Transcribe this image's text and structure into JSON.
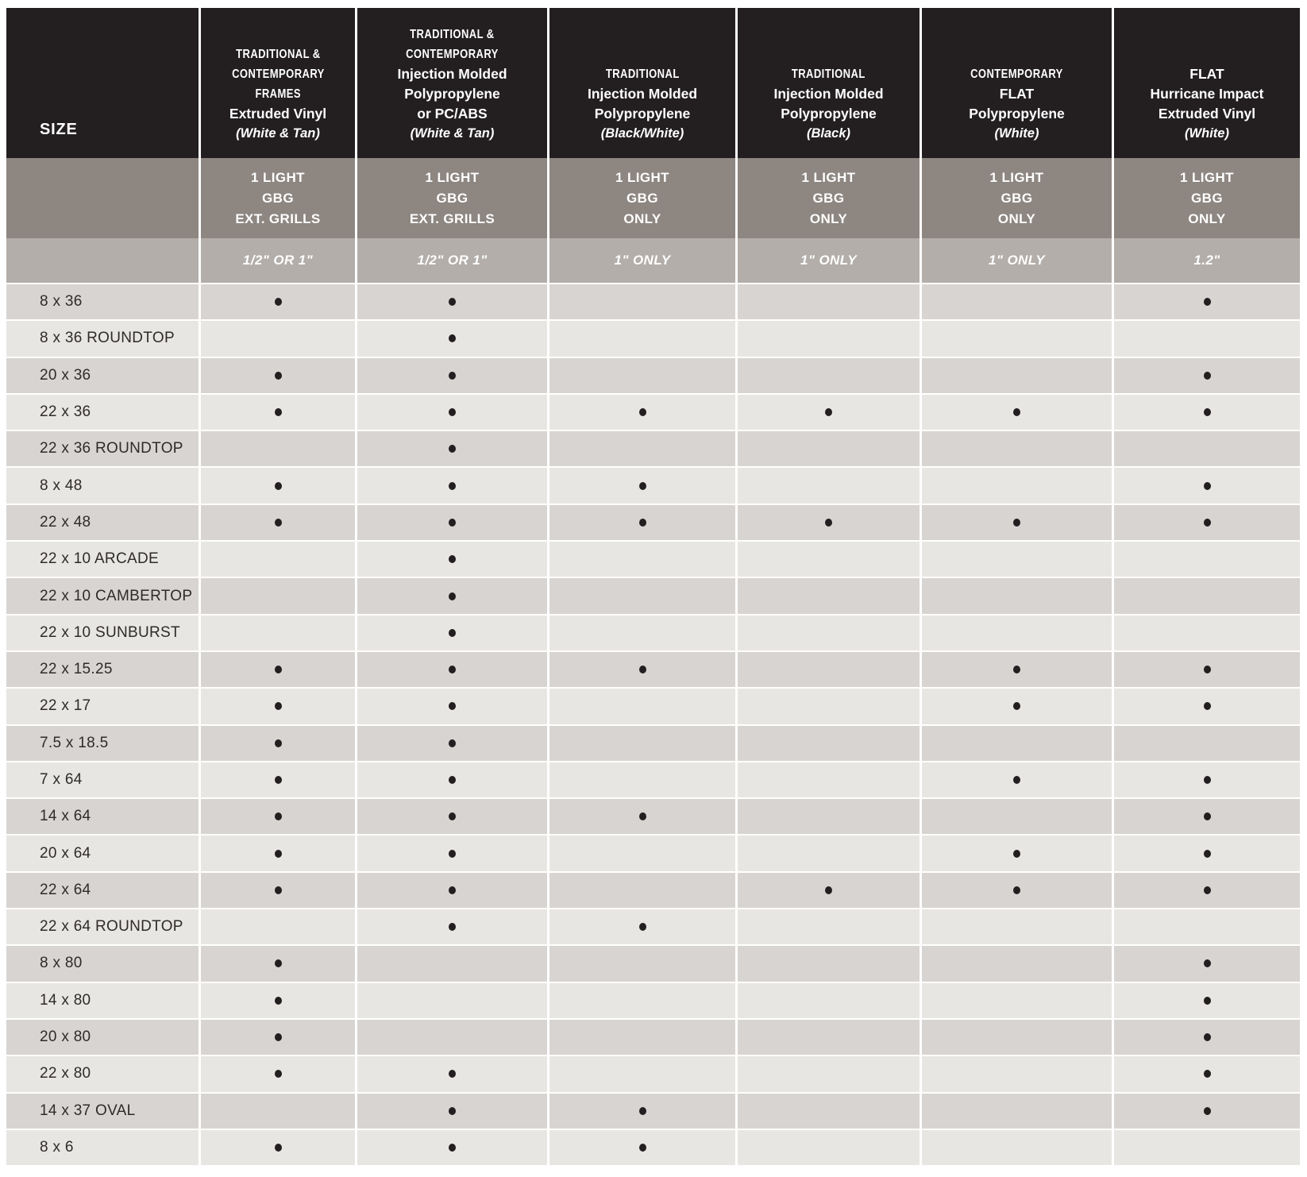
{
  "document_title": "Grille size availability chart",
  "colors": {
    "header_bg": "#231f20",
    "config_band_bg": "#8d8681",
    "size_band_bg": "#b3aeaa",
    "row_dark": "#d8d4d1",
    "row_light": "#e8e6e2",
    "header_text": "#ffffff",
    "row_text": "#2e2b2a",
    "dot": "#231f20"
  },
  "table": {
    "size_header": "SIZE",
    "columns": [
      {
        "family": [
          "TRADITIONAL &",
          "CONTEMPORARY",
          "FRAMES"
        ],
        "name": [
          "Extruded Vinyl"
        ],
        "finish": "(White & Tan)",
        "light_config": [
          "1 LIGHT",
          "GBG",
          "EXT. GRILLS"
        ],
        "bar_size": "1/2\" OR 1\""
      },
      {
        "family": [
          "TRADITIONAL &",
          "CONTEMPORARY"
        ],
        "name": [
          "Injection Molded",
          "Polypropylene",
          "or PC/ABS"
        ],
        "finish": "(White & Tan)",
        "light_config": [
          "1 LIGHT",
          "GBG",
          "EXT. GRILLS"
        ],
        "bar_size": "1/2\" OR 1\""
      },
      {
        "family": [
          "TRADITIONAL"
        ],
        "name": [
          "Injection Molded",
          "Polypropylene"
        ],
        "finish": "(Black/White)",
        "light_config": [
          "1 LIGHT",
          "GBG",
          "ONLY"
        ],
        "bar_size": "1\" ONLY"
      },
      {
        "family": [
          "TRADITIONAL"
        ],
        "name": [
          "Injection Molded",
          "Polypropylene"
        ],
        "finish": "(Black)",
        "light_config": [
          "1 LIGHT",
          "GBG",
          "ONLY"
        ],
        "bar_size": "1\" ONLY"
      },
      {
        "family": [
          "CONTEMPORARY"
        ],
        "name": [
          "FLAT",
          "Polypropylene"
        ],
        "finish": "(White)",
        "light_config": [
          "1 LIGHT",
          "GBG",
          "ONLY"
        ],
        "bar_size": "1\" ONLY"
      },
      {
        "family": [],
        "name": [
          "FLAT",
          "Hurricane Impact",
          "Extruded Vinyl"
        ],
        "finish": "(White)",
        "light_config": [
          "1 LIGHT",
          "GBG",
          "ONLY"
        ],
        "bar_size": "1.2\""
      }
    ],
    "rows": [
      {
        "size": "8 x 36",
        "availability": [
          1,
          1,
          0,
          0,
          0,
          1
        ]
      },
      {
        "size": "8 x 36 ROUNDTOP",
        "availability": [
          0,
          1,
          0,
          0,
          0,
          0
        ]
      },
      {
        "size": "20 x 36",
        "availability": [
          1,
          1,
          0,
          0,
          0,
          1
        ]
      },
      {
        "size": "22 x 36",
        "availability": [
          1,
          1,
          1,
          1,
          1,
          1
        ]
      },
      {
        "size": "22 x 36 ROUNDTOP",
        "availability": [
          0,
          1,
          0,
          0,
          0,
          0
        ]
      },
      {
        "size": "8 x 48",
        "availability": [
          1,
          1,
          1,
          0,
          0,
          1
        ]
      },
      {
        "size": "22 x 48",
        "availability": [
          1,
          1,
          1,
          1,
          1,
          1
        ]
      },
      {
        "size": "22 x 10 ARCADE",
        "availability": [
          0,
          1,
          0,
          0,
          0,
          0
        ]
      },
      {
        "size": "22 x 10 CAMBERTOP",
        "availability": [
          0,
          1,
          0,
          0,
          0,
          0
        ]
      },
      {
        "size": "22 x 10 SUNBURST",
        "availability": [
          0,
          1,
          0,
          0,
          0,
          0
        ]
      },
      {
        "size": "22 x 15.25",
        "availability": [
          1,
          1,
          1,
          0,
          1,
          1
        ]
      },
      {
        "size": "22 x 17",
        "availability": [
          1,
          1,
          0,
          0,
          1,
          1
        ]
      },
      {
        "size": "7.5 x 18.5",
        "availability": [
          1,
          1,
          0,
          0,
          0,
          0
        ]
      },
      {
        "size": "7 x 64",
        "availability": [
          1,
          1,
          0,
          0,
          1,
          1
        ]
      },
      {
        "size": "14 x 64",
        "availability": [
          1,
          1,
          1,
          0,
          0,
          1
        ]
      },
      {
        "size": "20 x 64",
        "availability": [
          1,
          1,
          0,
          0,
          1,
          1
        ]
      },
      {
        "size": "22 x 64",
        "availability": [
          1,
          1,
          0,
          1,
          1,
          1
        ]
      },
      {
        "size": "22 x 64 ROUNDTOP",
        "availability": [
          0,
          1,
          1,
          0,
          0,
          0
        ]
      },
      {
        "size": "8 x 80",
        "availability": [
          1,
          0,
          0,
          0,
          0,
          1
        ]
      },
      {
        "size": "14 x 80",
        "availability": [
          1,
          0,
          0,
          0,
          0,
          1
        ]
      },
      {
        "size": "20 x 80",
        "availability": [
          1,
          0,
          0,
          0,
          0,
          1
        ]
      },
      {
        "size": "22 x 80",
        "availability": [
          1,
          1,
          0,
          0,
          0,
          1
        ]
      },
      {
        "size": "14 x 37 OVAL",
        "availability": [
          0,
          1,
          1,
          0,
          0,
          1
        ]
      },
      {
        "size": "8 x 6",
        "availability": [
          1,
          1,
          1,
          0,
          0,
          0
        ]
      }
    ]
  }
}
